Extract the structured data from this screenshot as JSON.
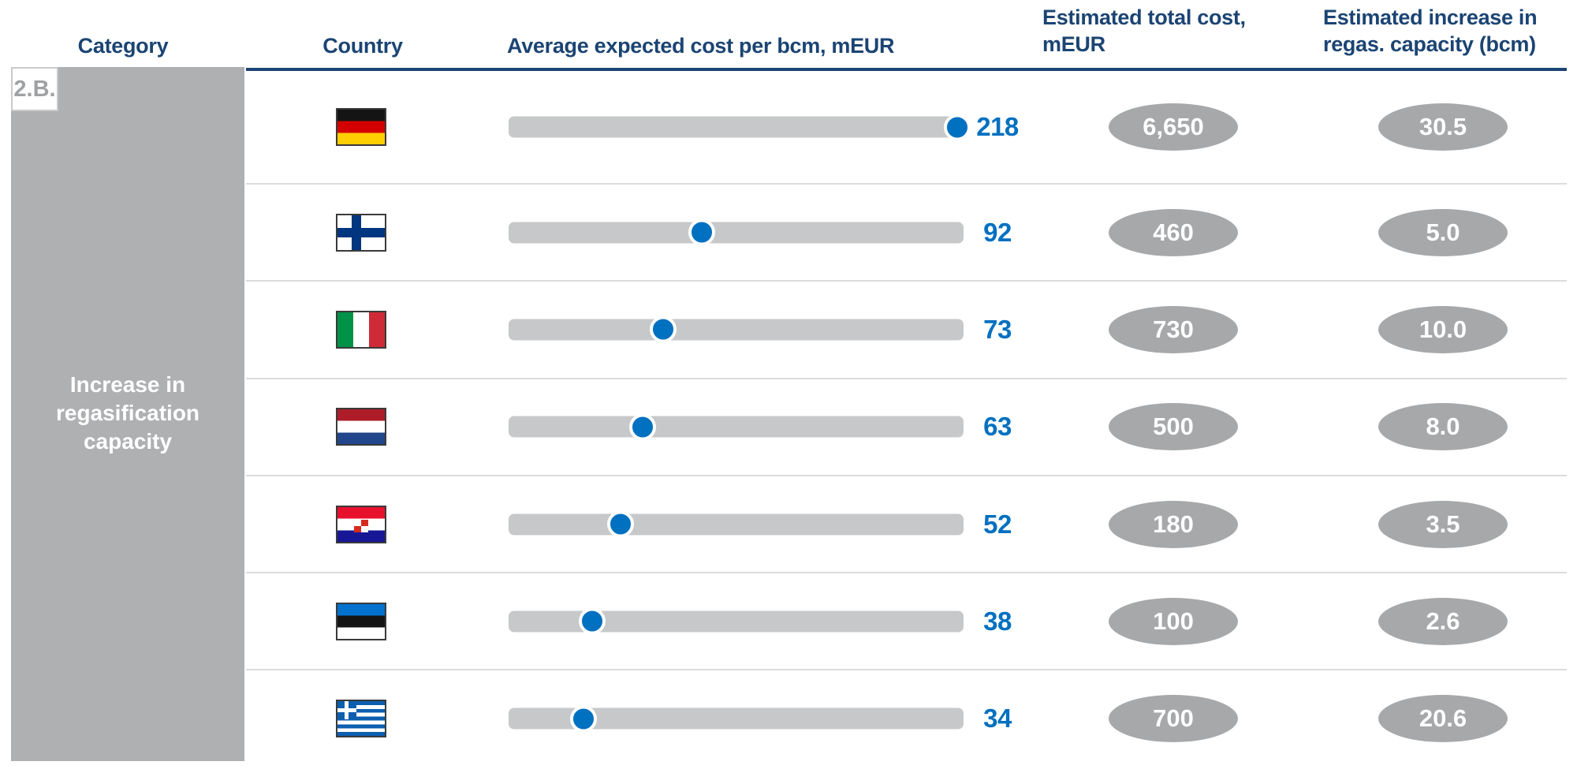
{
  "slide_badge": "2.B.",
  "category_label": "Increase in regasification capacity",
  "headers": {
    "category": "Category",
    "country": "Country",
    "avg_cost": "Average expected cost per bcm, mEUR",
    "total_cost": "Estimated total cost, mEUR",
    "capacity": "Estimated increase in regas. capacity (bcm)"
  },
  "scale_max": 218,
  "rows": [
    {
      "country": "Germany",
      "flag": "germany",
      "avg_cost": 218,
      "avg_cost_label": "218",
      "total_cost": "6,650",
      "capacity": "30.5"
    },
    {
      "country": "Finland",
      "flag": "finland",
      "avg_cost": 92,
      "avg_cost_label": "92",
      "total_cost": "460",
      "capacity": "5.0"
    },
    {
      "country": "Italy",
      "flag": "italy",
      "avg_cost": 73,
      "avg_cost_label": "73",
      "total_cost": "730",
      "capacity": "10.0"
    },
    {
      "country": "Netherlands",
      "flag": "netherlands",
      "avg_cost": 63,
      "avg_cost_label": "63",
      "total_cost": "500",
      "capacity": "8.0"
    },
    {
      "country": "Croatia",
      "flag": "croatia",
      "avg_cost": 52,
      "avg_cost_label": "52",
      "total_cost": "180",
      "capacity": "3.5"
    },
    {
      "country": "Estonia",
      "flag": "estonia",
      "avg_cost": 38,
      "avg_cost_label": "38",
      "total_cost": "100",
      "capacity": "2.6"
    },
    {
      "country": "Greece",
      "flag": "greece",
      "avg_cost": 34,
      "avg_cost_label": "34",
      "total_cost": "700",
      "capacity": "20.6"
    }
  ],
  "colors": {
    "header_navy": "#1b4473",
    "value_blue": "#0070c0",
    "bar_gray": "#c7c8ca",
    "oval_gray": "#a6a8aa",
    "category_block_gray": "#aeb0b2",
    "separator_gray": "#dcdcdc"
  },
  "chart_data": {
    "type": "table",
    "title": "",
    "columns": [
      "Category",
      "Country",
      "Average expected cost per bcm, mEUR",
      "Estimated total cost, mEUR",
      "Estimated increase in regas. capacity (bcm)"
    ],
    "category": "Increase in regasification capacity",
    "dot_plot": {
      "type": "scatter",
      "x_range": [
        0,
        218
      ],
      "unit": "mEUR per bcm",
      "countries": [
        "Germany",
        "Finland",
        "Italy",
        "Netherlands",
        "Croatia",
        "Estonia",
        "Greece"
      ],
      "values": [
        218,
        92,
        73,
        63,
        52,
        38,
        34
      ]
    },
    "rows": [
      [
        "Germany",
        218,
        "6,650",
        30.5
      ],
      [
        "Finland",
        92,
        "460",
        5.0
      ],
      [
        "Italy",
        73,
        "730",
        10.0
      ],
      [
        "Netherlands",
        63,
        "500",
        8.0
      ],
      [
        "Croatia",
        52,
        "180",
        3.5
      ],
      [
        "Estonia",
        38,
        "100",
        2.6
      ],
      [
        "Greece",
        34,
        "700",
        20.6
      ]
    ]
  }
}
